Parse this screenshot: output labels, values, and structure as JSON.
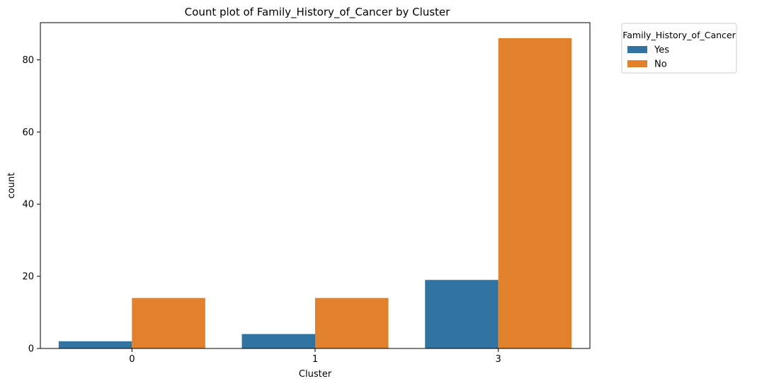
{
  "chart_data": {
    "type": "bar",
    "title": "Count plot of Family_History_of_Cancer by Cluster",
    "xlabel": "Cluster",
    "ylabel": "count",
    "categories": [
      "0",
      "1",
      "3"
    ],
    "series": [
      {
        "name": "Yes",
        "values": [
          2,
          4,
          19
        ],
        "color": "#3274a1"
      },
      {
        "name": "No",
        "values": [
          14,
          14,
          86
        ],
        "color": "#e1812c"
      }
    ],
    "ylim": [
      0,
      90.3
    ],
    "yticks": [
      0,
      20,
      40,
      60,
      80
    ],
    "legend": {
      "title": "Family_History_of_Cancer",
      "placement": "outside-top-right"
    },
    "grid": false
  }
}
